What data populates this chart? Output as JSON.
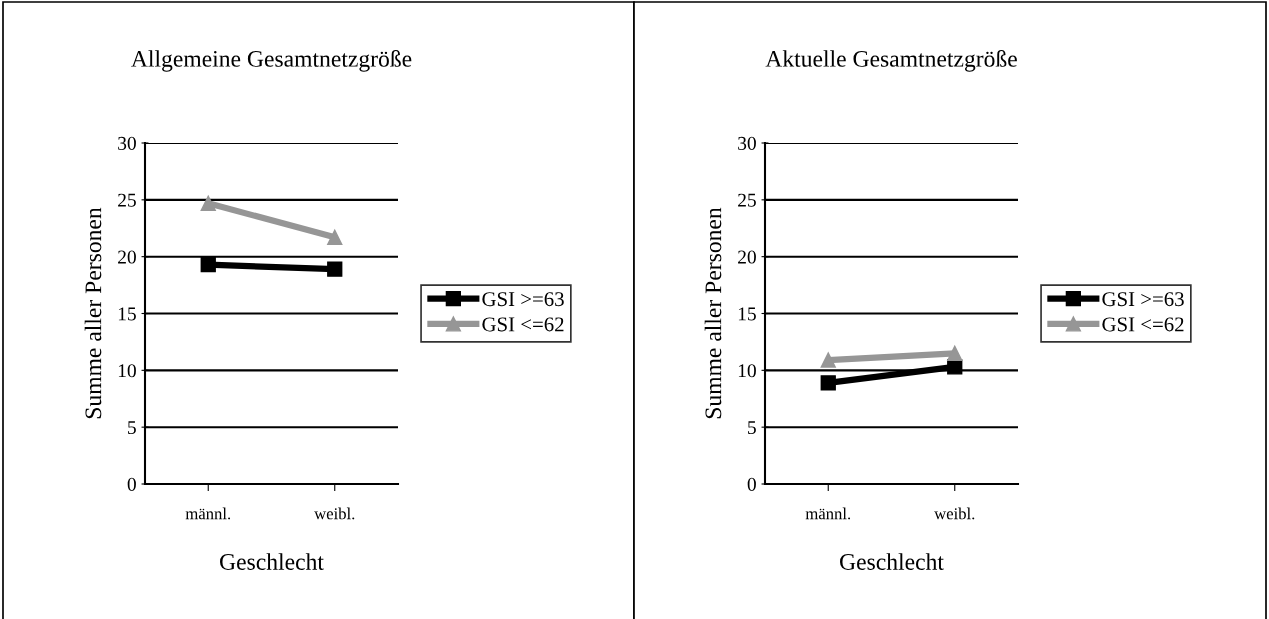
{
  "chart_data": [
    {
      "type": "line",
      "title": "Allgemeine Gesamtnetzgröße",
      "xlabel": "Geschlecht",
      "ylabel": "Summe aller Personen",
      "categories": [
        "männl.",
        "weibl."
      ],
      "ylim": [
        0,
        30
      ],
      "yticks": [
        0,
        5,
        10,
        15,
        20,
        25,
        30
      ],
      "grid": "y",
      "legend": "right",
      "series": [
        {
          "name": "GSI >=63",
          "color": "#000000",
          "marker": "square",
          "values": [
            19.3,
            18.9
          ]
        },
        {
          "name": "GSI <=62",
          "color": "#969696",
          "marker": "triangle",
          "values": [
            24.7,
            21.7
          ]
        }
      ]
    },
    {
      "type": "line",
      "title": "Aktuelle Gesamtnetzgröße",
      "xlabel": "Geschlecht",
      "ylabel": "Summe aller Personen",
      "categories": [
        "männl.",
        "weibl."
      ],
      "ylim": [
        0,
        30
      ],
      "yticks": [
        0,
        5,
        10,
        15,
        20,
        25,
        30
      ],
      "grid": "y",
      "legend": "right",
      "series": [
        {
          "name": "GSI >=63",
          "color": "#000000",
          "marker": "square",
          "values": [
            8.9,
            10.3
          ]
        },
        {
          "name": "GSI <=62",
          "color": "#969696",
          "marker": "triangle",
          "values": [
            10.9,
            11.5
          ]
        }
      ]
    }
  ]
}
